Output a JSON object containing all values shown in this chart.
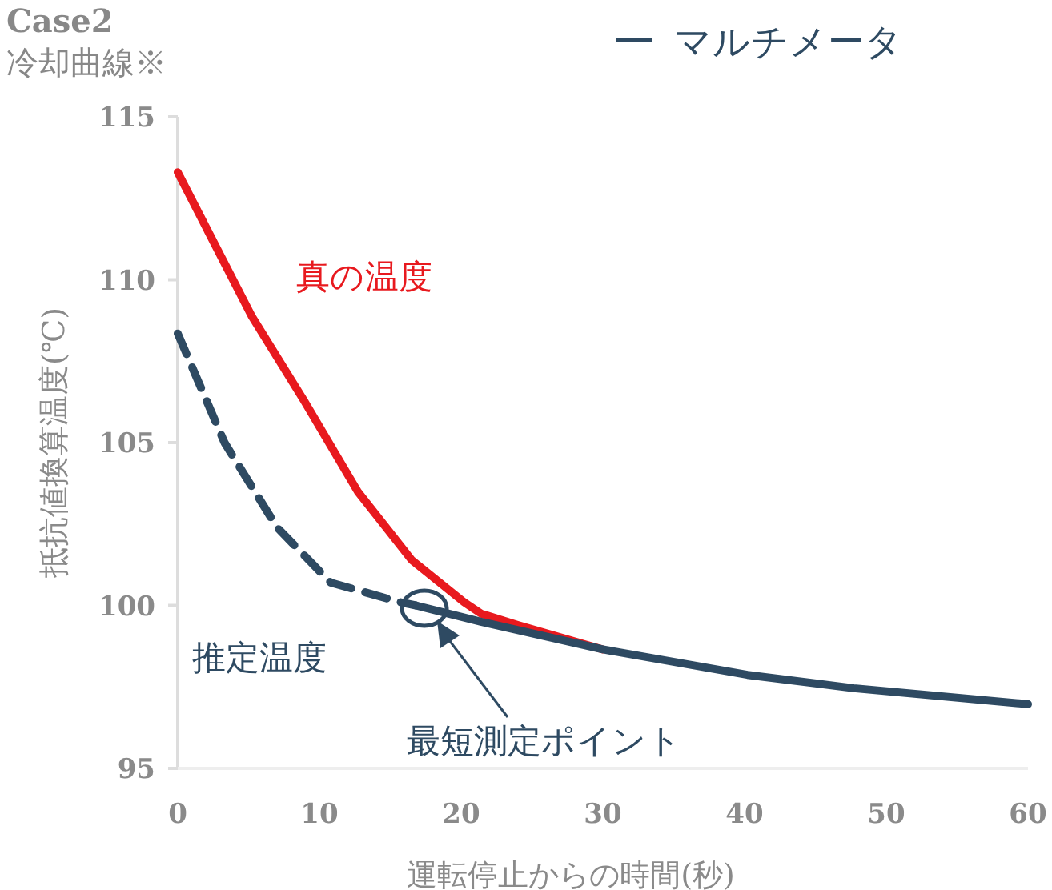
{
  "chart_data": {
    "type": "line",
    "title": "Case2",
    "subtitle": "冷却曲線※",
    "xlabel": "運転停止からの時間(秒)",
    "ylabel": "抵抗値換算温度(℃)",
    "xlim": [
      0,
      60
    ],
    "ylim": [
      95,
      115
    ],
    "xticks": [
      0,
      10,
      20,
      30,
      40,
      50,
      60
    ],
    "yticks": [
      95,
      100,
      105,
      110,
      115
    ],
    "grid": false,
    "legend": "top right",
    "series": [
      {
        "color": "#e8191e",
        "line_style": "solid",
        "x": [
          0,
          5.2,
          8.9,
          12.7,
          16.5,
          20.2,
          21.4,
          24,
          30
        ],
        "values": [
          113.3,
          108.9,
          106.3,
          103.5,
          101.4,
          100.1,
          99.75,
          99.4,
          98.65
        ]
      },
      {
        "name": "マルチメータ",
        "color": "#2e4a62",
        "line_style": "dashed",
        "x": [
          0,
          3.3,
          7,
          10.8,
          15.7,
          16.8
        ],
        "values": [
          108.35,
          105,
          102.4,
          100.7,
          100.1,
          100
        ]
      },
      {
        "color": "#2e4a62",
        "line_style": "solid",
        "x": [
          16.8,
          21.4,
          30,
          40.2,
          47.7,
          60
        ],
        "values": [
          100,
          99.5,
          98.65,
          97.87,
          97.46,
          96.97
        ]
      }
    ],
    "annotations": [
      "真の温度",
      "推定温度",
      "最短測定ポイント"
    ]
  }
}
